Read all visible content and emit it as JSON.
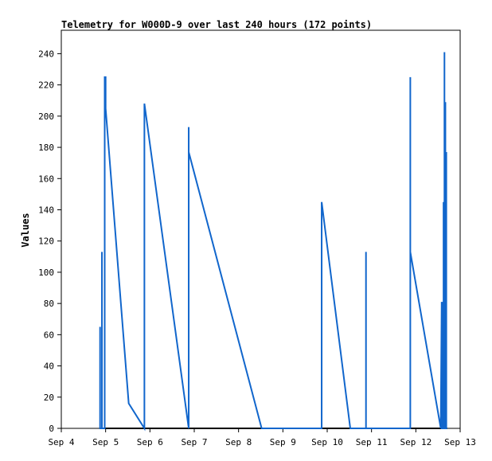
{
  "chart_data": {
    "type": "line",
    "title": "Telemetry for W000D-9 over last 240 hours (172 points)",
    "xlabel": "",
    "ylabel": "Values",
    "x_unit": "datetime",
    "x_range": [
      "2023-09-04T00:00",
      "2023-09-13T00:00"
    ],
    "x_ticks": [
      "Sep 4",
      "Sep 5",
      "Sep 6",
      "Sep 7",
      "Sep 8",
      "Sep 9",
      "Sep 10",
      "Sep 11",
      "Sep 12",
      "Sep 13"
    ],
    "ylim": [
      0,
      255
    ],
    "y_ticks": [
      "0",
      "20",
      "40",
      "60",
      "80",
      "100",
      "120",
      "140",
      "160",
      "180",
      "200",
      "220",
      "240"
    ],
    "grid": false,
    "color": "#1166cc",
    "series": [
      {
        "name": "",
        "points": [
          [
            "2023-09-04T21:00",
            0
          ],
          [
            "2023-09-04T21:00",
            65
          ],
          [
            "2023-09-04T21:00",
            0
          ],
          [
            "2023-09-04T22:00",
            0
          ],
          [
            "2023-09-04T22:00",
            113
          ],
          [
            "2023-09-04T22:00",
            0
          ],
          [
            "2023-09-04T23:30",
            0
          ],
          [
            "2023-09-04T23:30",
            225
          ],
          [
            "2023-09-05T00:00",
            225
          ],
          [
            "2023-09-05T00:00",
            205
          ],
          [
            "2023-09-05T12:30",
            16
          ],
          [
            "2023-09-05T21:00",
            0
          ],
          [
            "2023-09-05T21:00",
            208
          ],
          [
            "2023-09-06T21:00",
            0
          ],
          [
            "2023-09-06T21:00",
            193
          ],
          [
            "2023-09-06T21:00",
            177
          ],
          [
            "2023-09-08T12:30",
            0
          ],
          [
            "2023-09-09T21:00",
            0
          ],
          [
            "2023-09-09T21:00",
            145
          ],
          [
            "2023-09-10T12:30",
            0
          ],
          [
            "2023-09-10T21:00",
            0
          ],
          [
            "2023-09-10T21:00",
            113
          ],
          [
            "2023-09-10T21:00",
            0
          ],
          [
            "2023-09-11T21:00",
            0
          ],
          [
            "2023-09-11T21:00",
            225
          ],
          [
            "2023-09-11T21:00",
            113
          ],
          [
            "2023-09-12T13:30",
            0
          ],
          [
            "2023-09-12T14:00",
            81
          ],
          [
            "2023-09-12T14:00",
            0
          ],
          [
            "2023-09-12T14:30",
            0
          ],
          [
            "2023-09-12T14:30",
            81
          ],
          [
            "2023-09-12T14:30",
            0
          ],
          [
            "2023-09-12T15:00",
            0
          ],
          [
            "2023-09-12T15:00",
            145
          ],
          [
            "2023-09-12T15:00",
            0
          ],
          [
            "2023-09-12T15:30",
            0
          ],
          [
            "2023-09-12T15:30",
            241
          ],
          [
            "2023-09-12T15:30",
            0
          ],
          [
            "2023-09-12T16:00",
            0
          ],
          [
            "2023-09-12T16:00",
            209
          ],
          [
            "2023-09-12T16:00",
            0
          ],
          [
            "2023-09-12T16:30",
            0
          ],
          [
            "2023-09-12T16:30",
            177
          ],
          [
            "2023-09-12T16:30",
            0
          ],
          [
            "2023-09-12T17:00",
            0
          ]
        ]
      }
    ]
  }
}
